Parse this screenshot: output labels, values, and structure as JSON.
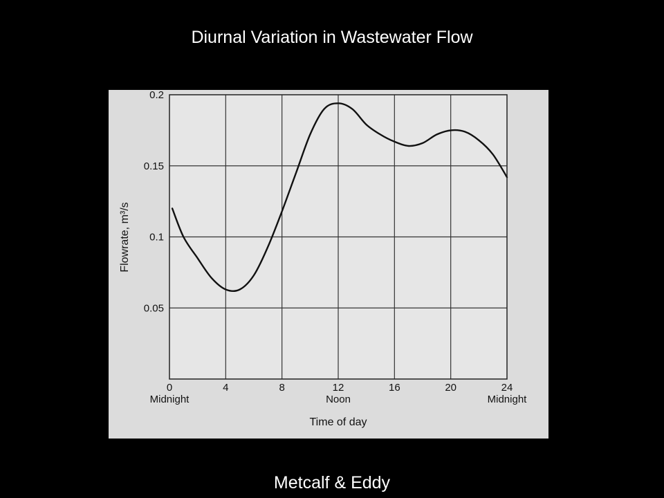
{
  "slide": {
    "title": "Diurnal Variation in Wastewater Flow",
    "credit": "Metcalf & Eddy"
  },
  "colors": {
    "background": "#000000",
    "text": "#ffffff",
    "plot_background": "#e6e6e6",
    "curve": "#111111"
  },
  "chart_data": {
    "type": "line",
    "xlabel": "Time of day",
    "ylabel": "Flowrate, m³/s",
    "xlim": [
      0,
      24
    ],
    "ylim": [
      0,
      0.2
    ],
    "x_ticks": [
      0,
      4,
      8,
      12,
      16,
      20,
      24
    ],
    "x_tick_labels": [
      "0",
      "4",
      "8",
      "12",
      "16",
      "20",
      "24"
    ],
    "x_time_labels": [
      {
        "x": 0,
        "label": "Midnight"
      },
      {
        "x": 12,
        "label": "Noon"
      },
      {
        "x": 24,
        "label": "Midnight"
      }
    ],
    "y_ticks": [
      0.05,
      0.1,
      0.15,
      0.2
    ],
    "y_tick_labels": [
      "0.05",
      "0.1",
      "0.15",
      "0.2"
    ],
    "grid": true,
    "series": [
      {
        "x": [
          0.2,
          1,
          2,
          3,
          4,
          5,
          6,
          7,
          8,
          9,
          10,
          11,
          12,
          13,
          14,
          15,
          16,
          17,
          18,
          19,
          20,
          21,
          22,
          23,
          24
        ],
        "y": [
          0.12,
          0.1,
          0.085,
          0.071,
          0.063,
          0.063,
          0.073,
          0.093,
          0.118,
          0.145,
          0.172,
          0.19,
          0.194,
          0.19,
          0.179,
          0.172,
          0.167,
          0.164,
          0.166,
          0.172,
          0.175,
          0.174,
          0.168,
          0.158,
          0.142
        ]
      }
    ]
  }
}
